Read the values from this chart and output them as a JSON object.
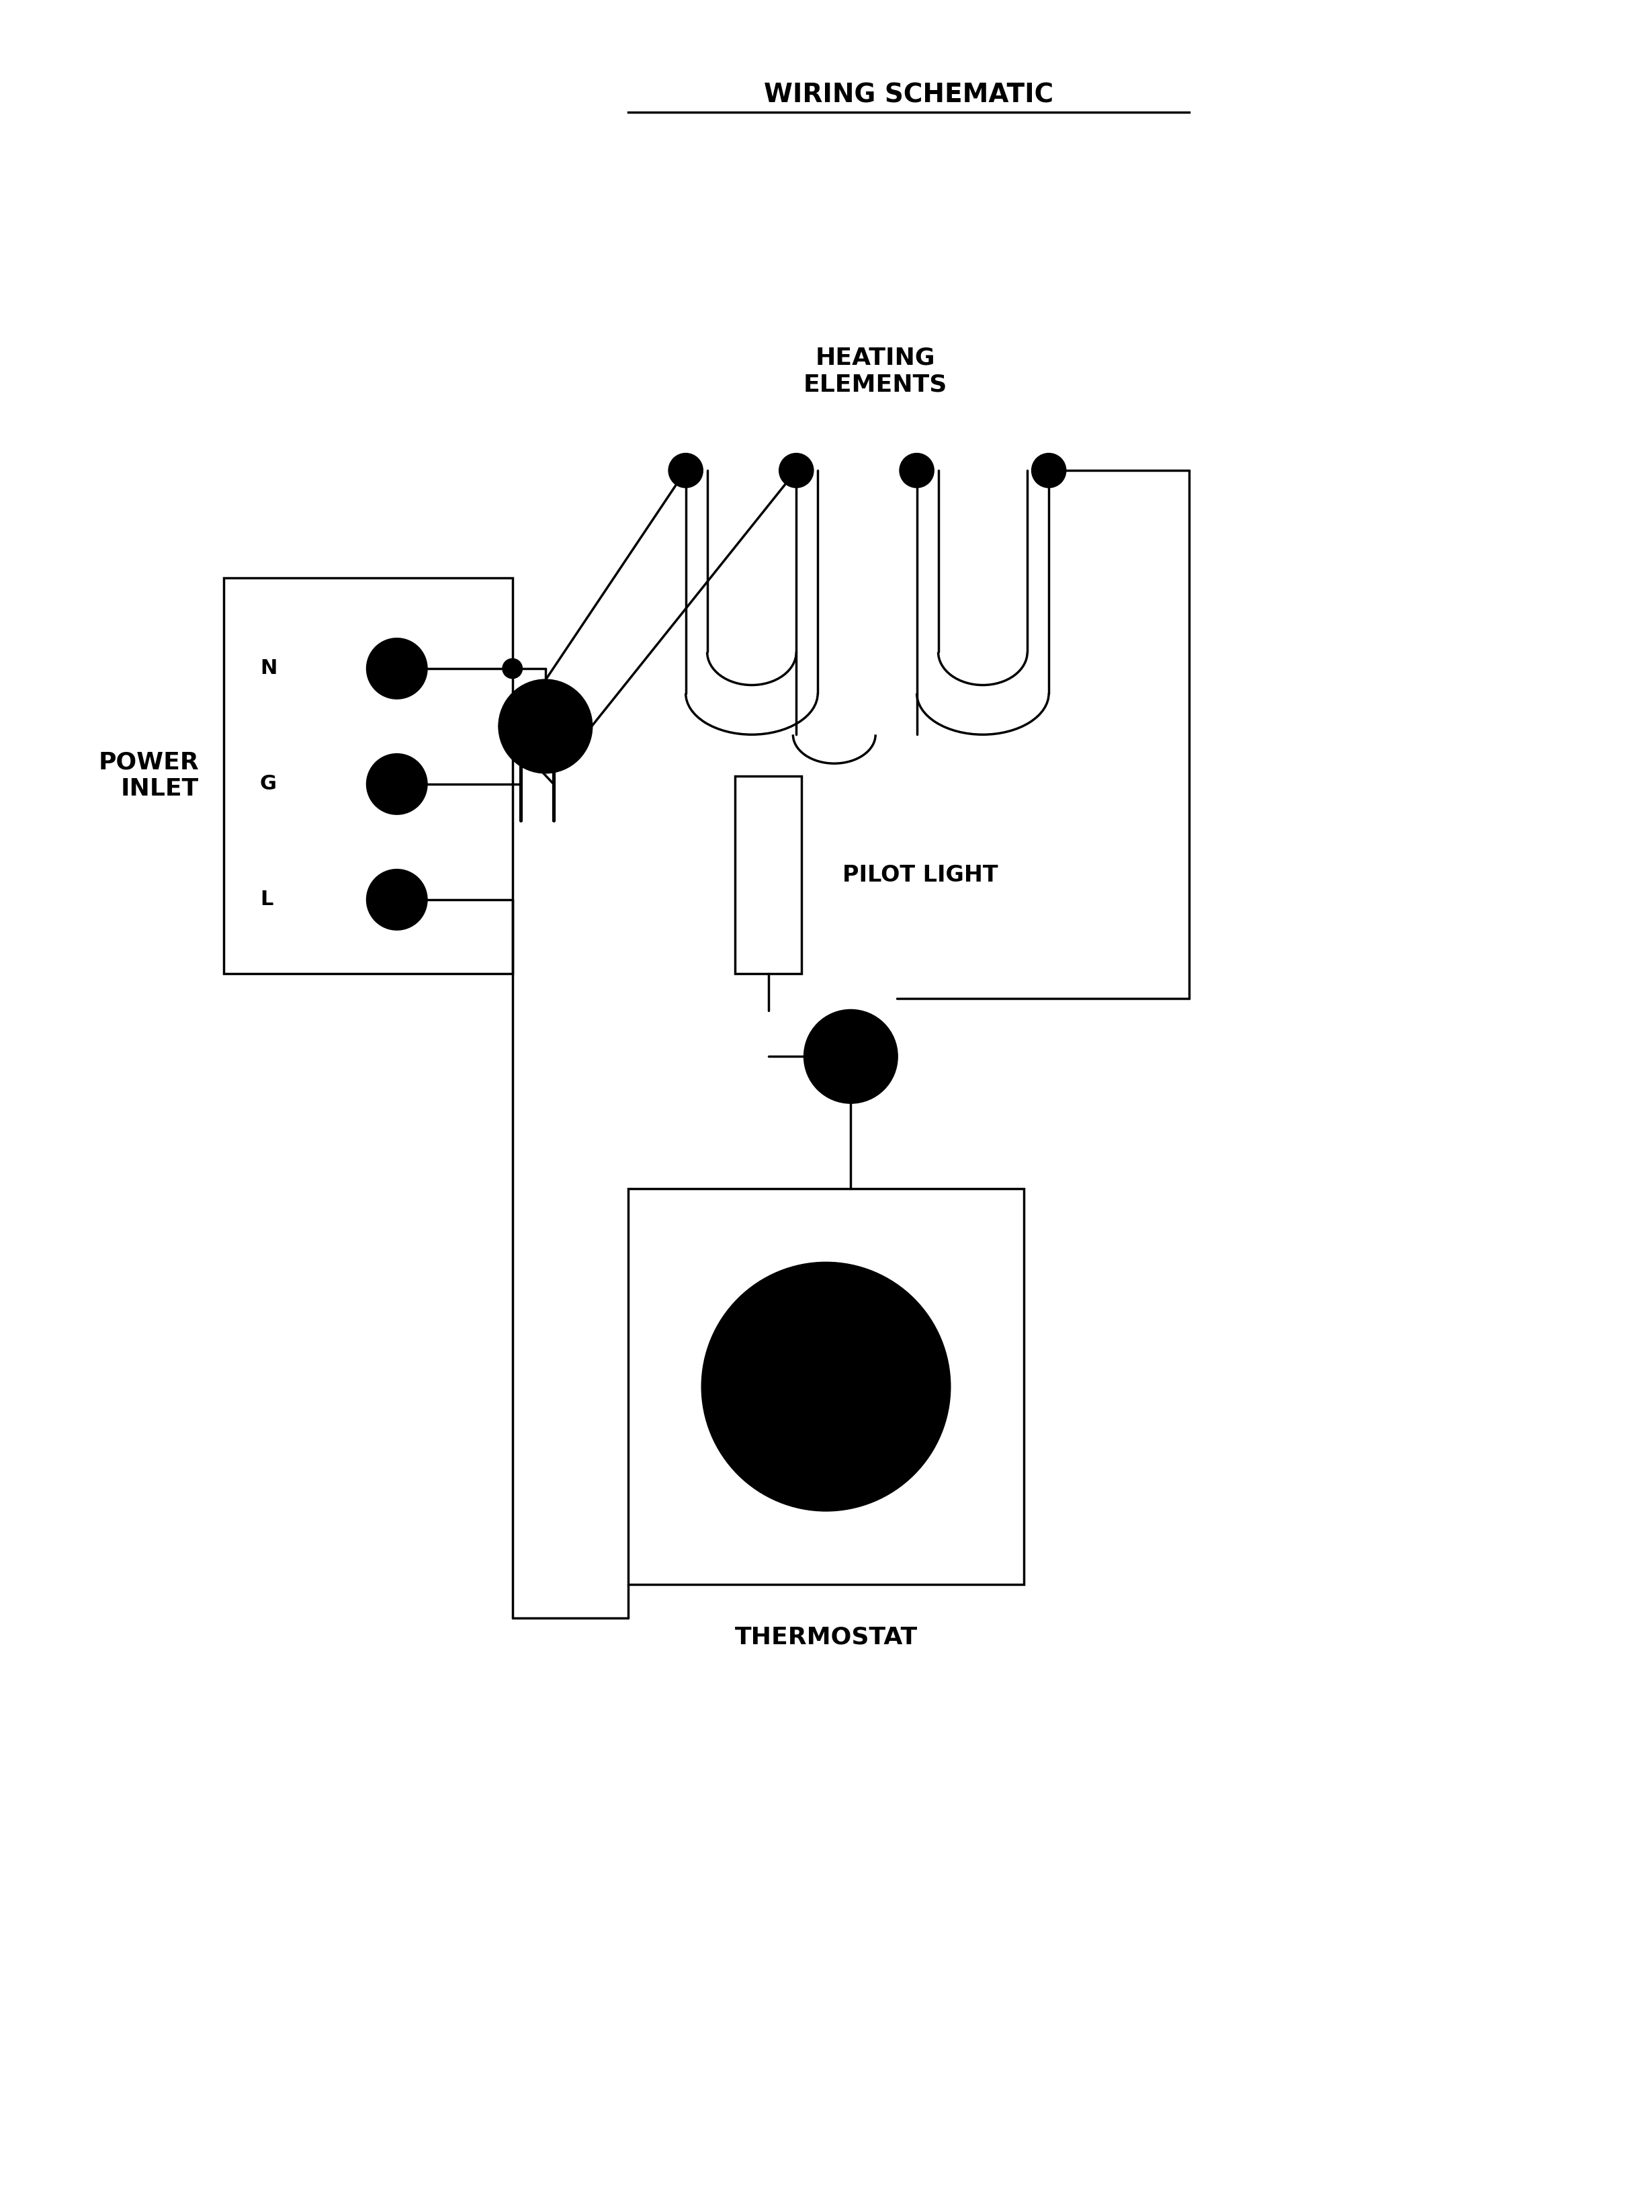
{
  "title": "WIRING SCHEMATIC",
  "background_color": "#ffffff",
  "line_color": "#000000",
  "line_width": 2.5,
  "fig_width": 24.59,
  "fig_height": 32.92,
  "labels": {
    "heating_elements": "HEATING\nELEMENTS",
    "power_inlet": "POWER\nINLET",
    "pilot_light": "PILOT LIGHT",
    "thermostat": "THERMOSTAT",
    "N": "N",
    "G": "G",
    "L": "L"
  }
}
